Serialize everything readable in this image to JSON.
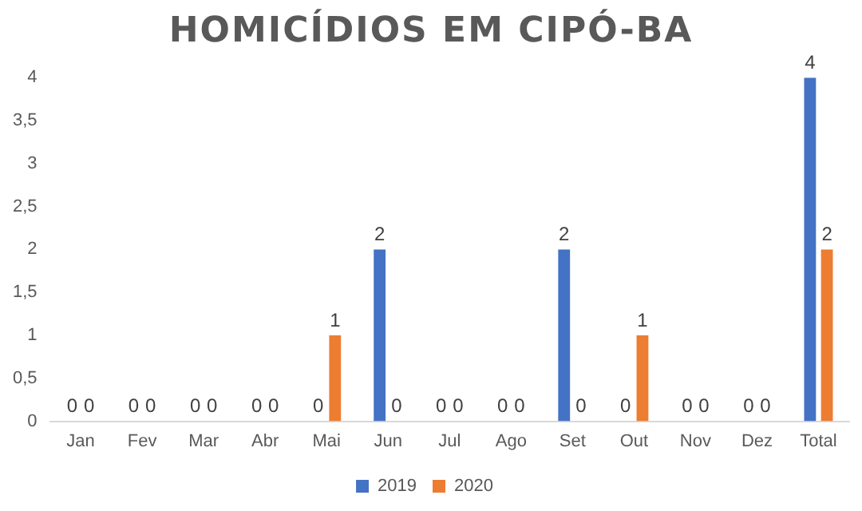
{
  "chart_data": {
    "type": "bar",
    "title": "HOMICÍDIOS EM CIPÓ-BA",
    "categories": [
      "Jan",
      "Fev",
      "Mar",
      "Abr",
      "Mai",
      "Jun",
      "Jul",
      "Ago",
      "Set",
      "Out",
      "Nov",
      "Dez",
      "Total"
    ],
    "series": [
      {
        "name": "2019",
        "color": "#4472c4",
        "values": [
          0,
          0,
          0,
          0,
          0,
          2,
          0,
          0,
          2,
          0,
          0,
          0,
          4
        ]
      },
      {
        "name": "2020",
        "color": "#ed7d31",
        "values": [
          0,
          0,
          0,
          0,
          1,
          0,
          0,
          0,
          0,
          1,
          0,
          0,
          2
        ]
      }
    ],
    "ylim": [
      0,
      4
    ],
    "yticks": [
      0,
      {
        "value": 0.5,
        "label": "0,5"
      },
      1,
      {
        "value": 1.5,
        "label": "1,5"
      },
      2,
      {
        "value": 2.5,
        "label": "2,5"
      },
      3,
      {
        "value": 3.5,
        "label": "3,5"
      },
      4
    ],
    "grid": false,
    "legend": "bottom",
    "data_labels": true
  }
}
